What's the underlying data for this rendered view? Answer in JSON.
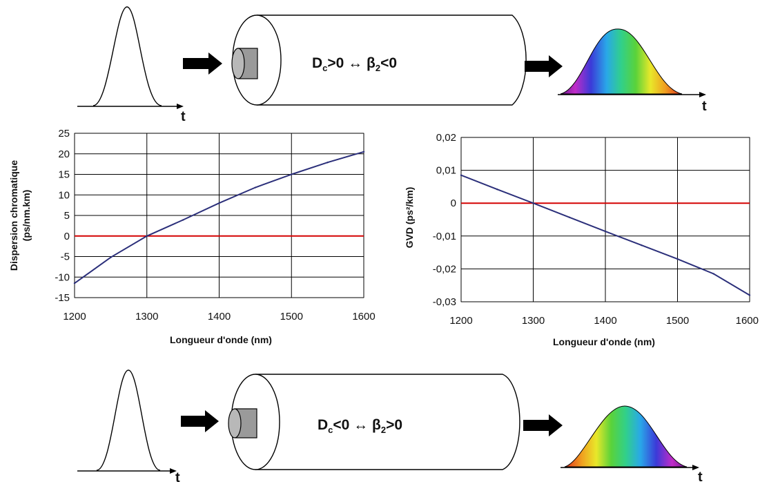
{
  "top_diagram": {
    "fiber_label": "Dc>0 ↔ β2<0",
    "fiber_parts": {
      "D": "D",
      "c": "c",
      "rel1": ">0 ↔ β",
      "two": "2",
      "rel2": "<0"
    },
    "time_label": "t"
  },
  "bottom_diagram": {
    "fiber_label": "Dc<0 ↔ β2>0",
    "fiber_parts": {
      "D": "D",
      "c": "c",
      "rel1": "<0 ↔ β",
      "two": "2",
      "rel2": ">0"
    },
    "time_label": "t"
  },
  "colors": {
    "curve": "#2b2f7a",
    "zero_line": "#d40000",
    "grid": "#000000",
    "arrow": "#000000",
    "fiber_core": "#9a9a9a"
  },
  "chart_data": [
    {
      "type": "line",
      "xlabel": "Longueur d'onde (nm)",
      "ylabel_lines": [
        "Dispersion chromatique",
        "(ps/nm.km)"
      ],
      "xlim": [
        1200,
        1600
      ],
      "ylim": [
        -15,
        25
      ],
      "x_ticks": [
        "1200",
        "1300",
        "1400",
        "1500",
        "1600"
      ],
      "y_ticks": [
        "25",
        "20",
        "15",
        "10",
        "5",
        "0",
        "-5",
        "-10",
        "-15"
      ],
      "grid": true,
      "series": [
        {
          "x": [
            1200,
            1250,
            1300,
            1350,
            1400,
            1450,
            1500,
            1550,
            1600
          ],
          "y": [
            -11.5,
            -5.2,
            0,
            3.9,
            8.0,
            11.8,
            15.0,
            17.9,
            20.5
          ]
        }
      ],
      "reference_line_y": 0
    },
    {
      "type": "line",
      "xlabel": "Longueur d'onde (nm)",
      "ylabel": "GVD (ps²/km)",
      "xlim": [
        1200,
        1600
      ],
      "ylim": [
        -0.03,
        0.02
      ],
      "x_ticks": [
        "1200",
        "1300",
        "1400",
        "1500",
        "1600"
      ],
      "y_ticks": [
        "0,02",
        "0,01",
        "0",
        "-0,01",
        "-0,02",
        "-0,03"
      ],
      "grid": true,
      "series": [
        {
          "x": [
            1200,
            1250,
            1300,
            1350,
            1400,
            1450,
            1500,
            1550,
            1600
          ],
          "y": [
            0.0085,
            0.0042,
            0.0,
            -0.0043,
            -0.0086,
            -0.0128,
            -0.017,
            -0.0215,
            -0.028
          ]
        }
      ],
      "reference_line_y": 0
    }
  ]
}
